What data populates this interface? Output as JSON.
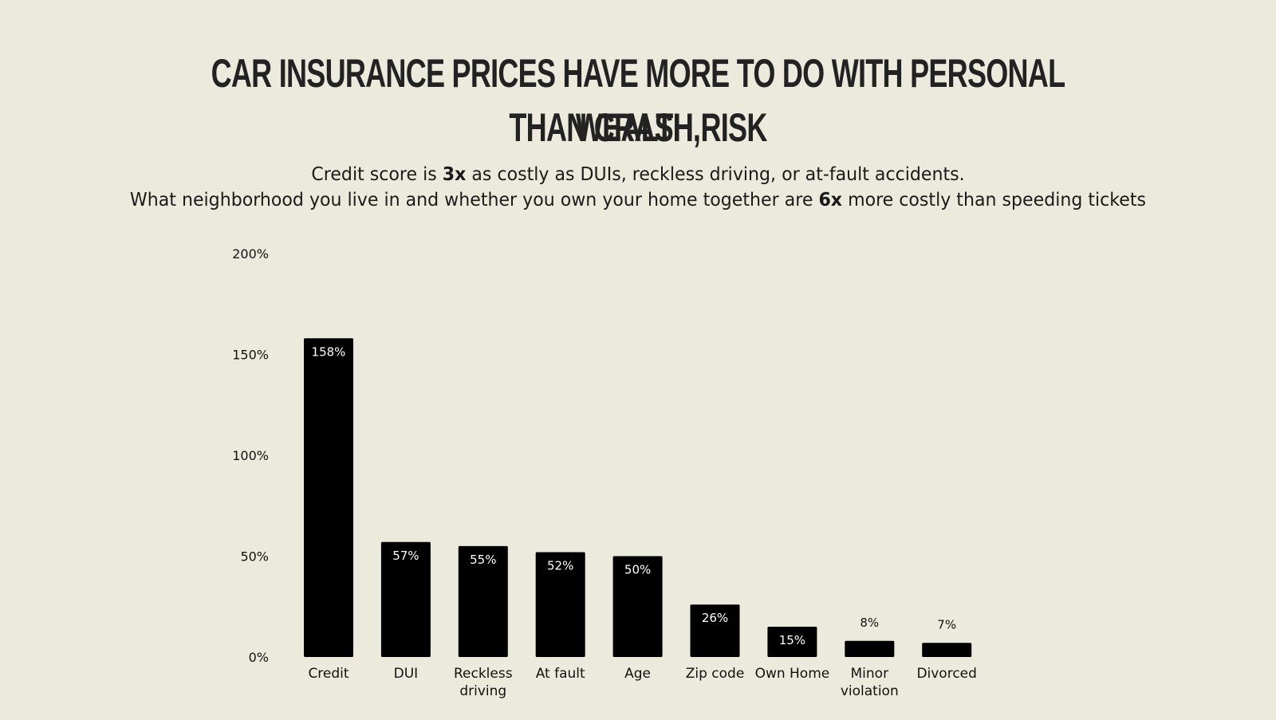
{
  "title": {
    "line1": "Car insurance prices have more to do with personal wealth,",
    "line2": "than crash risk"
  },
  "subtitle": {
    "line1_pre": "Credit score is ",
    "line1_bold": "3x",
    "line1_post": " as costly as DUIs, reckless driving, or at-fault accidents.",
    "line2_pre": "What neighborhood you live in and whether you own your home together are ",
    "line2_bold": "6x",
    "line2_post": " more costly than speeding tickets"
  },
  "colors": {
    "background": "#ebeadc",
    "bar": "#000000",
    "bar_label_inside": "#ffffff",
    "bar_label_outside": "#111111",
    "text": "#111111"
  },
  "chart_data": {
    "type": "bar",
    "categories": [
      [
        "Credit"
      ],
      [
        "DUI"
      ],
      [
        "Reckless",
        "driving"
      ],
      [
        "At fault"
      ],
      [
        "Age"
      ],
      [
        "Zip code"
      ],
      [
        "Own Home"
      ],
      [
        "Minor",
        "violation"
      ],
      [
        "Divorced"
      ]
    ],
    "values": [
      158,
      57,
      55,
      52,
      50,
      26,
      15,
      8,
      7
    ],
    "data_labels": [
      "158%",
      "57%",
      "55%",
      "52%",
      "50%",
      "26%",
      "15%",
      "8%",
      "7%"
    ],
    "y_ticks": [
      0,
      50,
      100,
      150,
      200
    ],
    "y_tick_labels": [
      "0%",
      "50%",
      "100%",
      "150%",
      "200%"
    ],
    "ylim": [
      0,
      200
    ],
    "grid": false,
    "legend": "none"
  }
}
